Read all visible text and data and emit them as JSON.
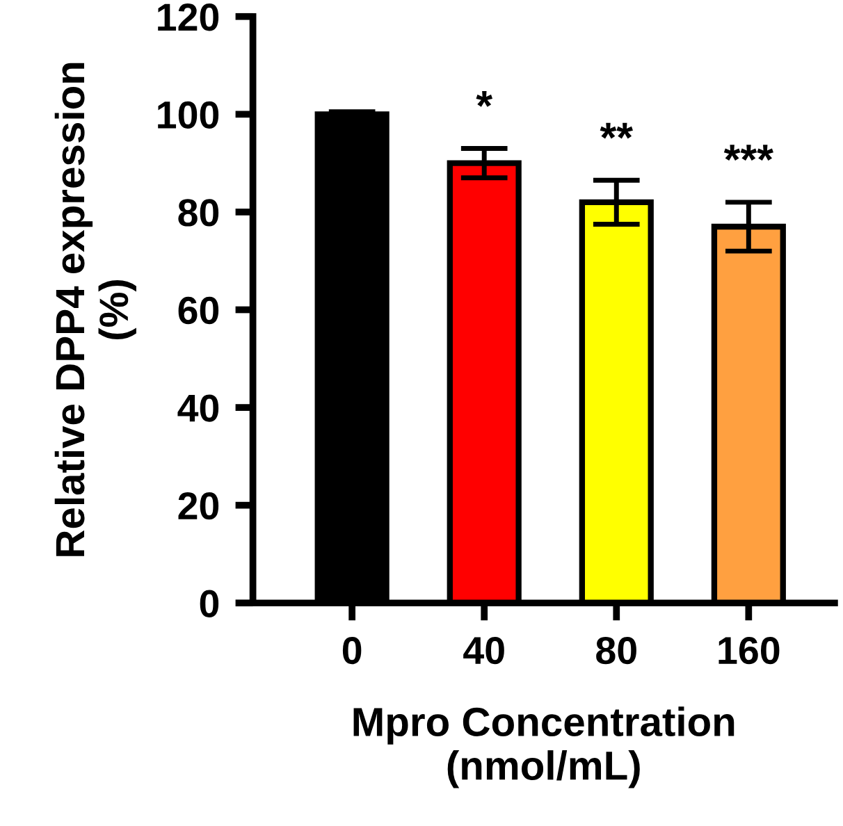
{
  "chart_data": {
    "type": "bar",
    "xlabel": "Mpro Concentration\n(nmol/mL)",
    "ylabel": "Relative DPP4 expression\n(%)",
    "categories": [
      "0",
      "40",
      "80",
      "160"
    ],
    "values": [
      100,
      90,
      82,
      77
    ],
    "colors": [
      "#000000",
      "#ff0000",
      "#ffff00",
      "#ffa040"
    ],
    "errors": [
      0.5,
      3,
      4.5,
      5
    ],
    "ylim": [
      0,
      120
    ],
    "yticks": [
      0,
      20,
      40,
      60,
      80,
      100,
      120
    ],
    "grid": false,
    "legend": false,
    "annotations": [
      {
        "text": "*",
        "x": "40",
        "y": 93
      },
      {
        "text": "**",
        "x": "80",
        "y": 86.5
      },
      {
        "text": "***",
        "x": "160",
        "y": 82
      }
    ]
  }
}
